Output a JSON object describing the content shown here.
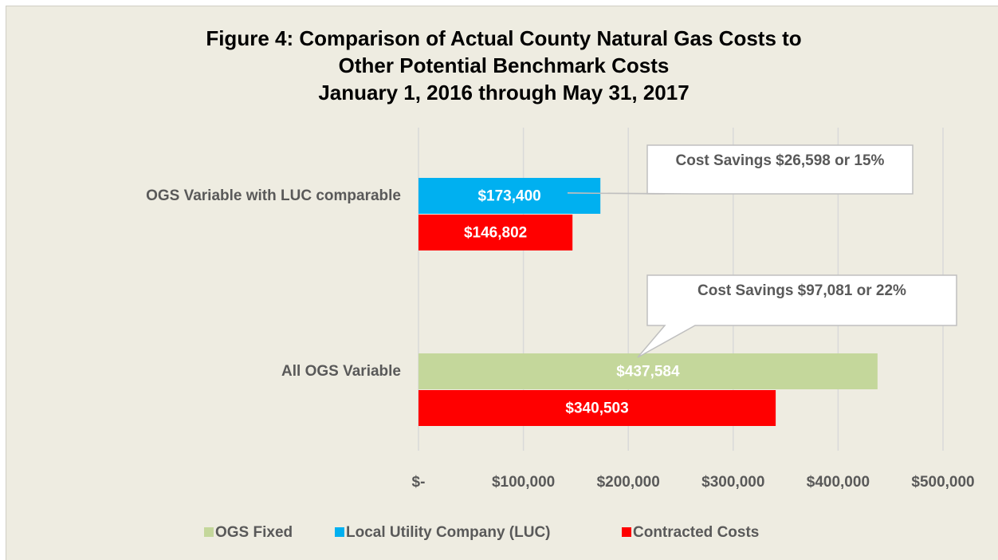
{
  "chart_data": {
    "type": "hbar",
    "title": "Figure 4: Comparison of Actual County Natural Gas Costs to",
    "subtitle": "Other Potential Benchmark Costs",
    "subtitle2": "January 1, 2016 through May 31, 2017",
    "categories": [
      "OGS Variable with LUC comparable",
      "All OGS Variable"
    ],
    "series": [
      {
        "name": "OGS Fixed",
        "color": "#c4d79b",
        "values": [
          null,
          437584
        ],
        "value_labels": [
          null,
          "$437,584"
        ]
      },
      {
        "name": "Local Utility Company (LUC)",
        "color": "#00b0f0",
        "values": [
          173400,
          null
        ],
        "value_labels": [
          "$173,400",
          null
        ]
      },
      {
        "name": "Contracted Costs",
        "color": "#ff0000",
        "values": [
          146802,
          340503
        ],
        "value_labels": [
          "$146,802",
          "$340,503"
        ]
      }
    ],
    "xlim": [
      0,
      500000
    ],
    "xticks": [
      {
        "value": 0,
        "label": "$-"
      },
      {
        "value": 100000,
        "label": "$100,000"
      },
      {
        "value": 200000,
        "label": "$200,000"
      },
      {
        "value": 300000,
        "label": "$300,000"
      },
      {
        "value": 400000,
        "label": "$400,000"
      },
      {
        "value": 500000,
        "label": "$500,000"
      }
    ],
    "grid": true,
    "legend": "bottom",
    "annotations": [
      {
        "text": "Cost Savings $26,598 or 15%"
      },
      {
        "text": "Cost Savings $97,081 or 22%"
      }
    ]
  }
}
